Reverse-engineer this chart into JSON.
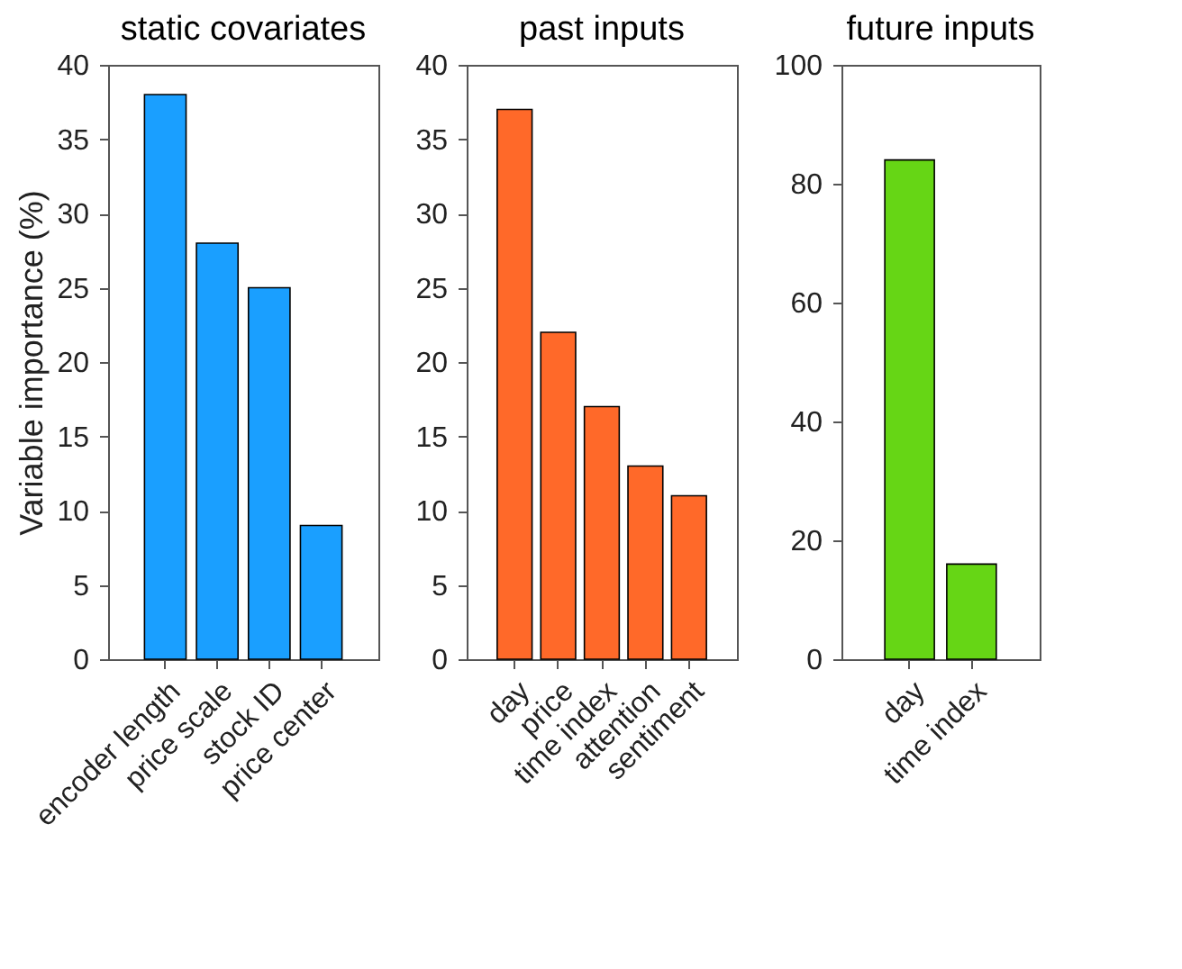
{
  "chart_data": [
    {
      "type": "bar",
      "title": "static covariates",
      "ylabel": "Variable importance (%)",
      "categories": [
        "encoder length",
        "price scale",
        "stock ID",
        "price center"
      ],
      "values": [
        38,
        28,
        25,
        9
      ],
      "color": "#1a9fff",
      "ylim": [
        0,
        40
      ],
      "yticks": [
        0,
        5,
        10,
        15,
        20,
        25,
        30,
        35,
        40
      ]
    },
    {
      "type": "bar",
      "title": "past inputs",
      "categories": [
        "day",
        "price",
        "time index",
        "attention",
        "sentiment"
      ],
      "values": [
        37,
        22,
        17,
        13,
        11
      ],
      "color": "#ff6929",
      "ylim": [
        0,
        40
      ],
      "yticks": [
        0,
        5,
        10,
        15,
        20,
        25,
        30,
        35,
        40
      ]
    },
    {
      "type": "bar",
      "title": "future inputs",
      "categories": [
        "day",
        "time index"
      ],
      "values": [
        84,
        16
      ],
      "color": "#66d615",
      "ylim": [
        0,
        100
      ],
      "yticks": [
        0,
        20,
        40,
        60,
        80,
        100
      ]
    }
  ]
}
